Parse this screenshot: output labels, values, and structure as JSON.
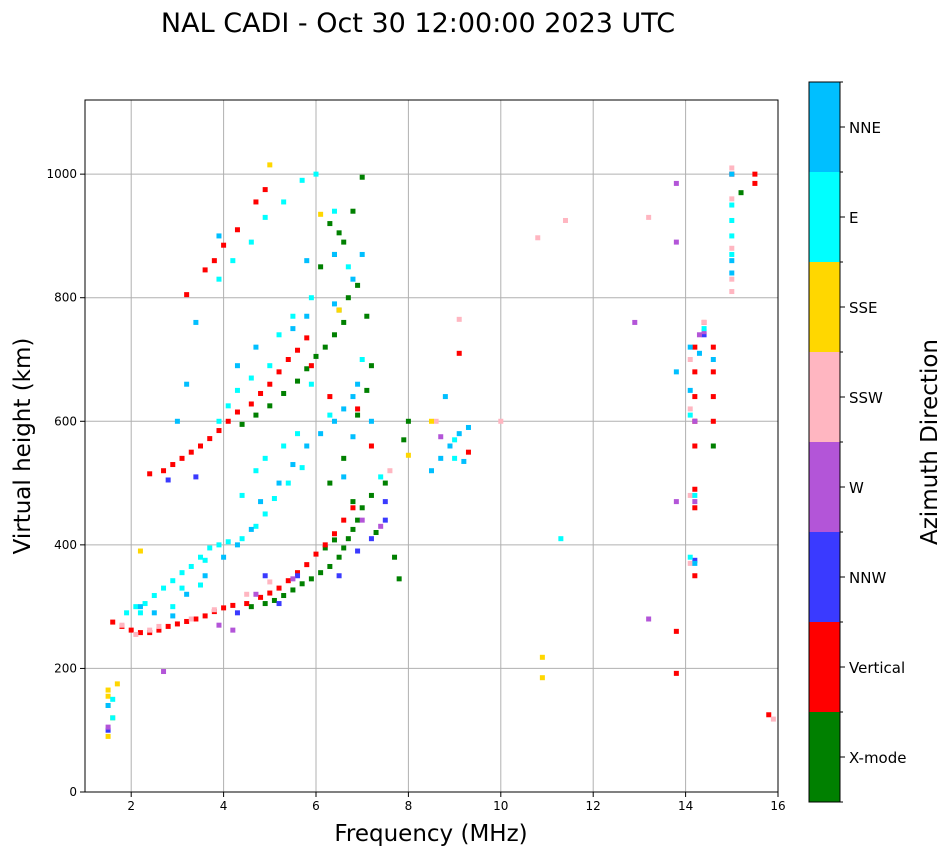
{
  "chart_data": {
    "type": "scatter",
    "title": "NAL CADI - Oct 30 12:00:00 2023 UTC",
    "xlabel": "Frequency (MHz)",
    "ylabel": "Virtual height (km)",
    "xlim": [
      1,
      16
    ],
    "ylim": [
      0,
      1120
    ],
    "xticks": [
      2,
      4,
      6,
      8,
      10,
      12,
      14,
      16
    ],
    "yticks": [
      0,
      200,
      400,
      600,
      800,
      1000
    ],
    "grid": true,
    "colorbar": {
      "label": "Azimuth Direction",
      "categories": [
        "X-mode",
        "Vertical",
        "NNW",
        "W",
        "SSW",
        "SSE",
        "E",
        "NNE"
      ],
      "colors": [
        "#008000",
        "#ff0000",
        "#3a3aff",
        "#b355d8",
        "#ffb6c1",
        "#ffd700",
        "#00ffff",
        "#00bfff"
      ]
    },
    "series": [
      {
        "name": "X-mode",
        "points": [
          [
            4.6,
            300
          ],
          [
            4.9,
            305
          ],
          [
            5.1,
            310
          ],
          [
            5.3,
            318
          ],
          [
            5.5,
            327
          ],
          [
            5.7,
            337
          ],
          [
            5.9,
            345
          ],
          [
            6.1,
            355
          ],
          [
            6.3,
            365
          ],
          [
            6.5,
            380
          ],
          [
            6.6,
            395
          ],
          [
            6.7,
            410
          ],
          [
            6.8,
            425
          ],
          [
            6.9,
            440
          ],
          [
            7.0,
            460
          ],
          [
            7.2,
            480
          ],
          [
            7.5,
            500
          ],
          [
            6.2,
            395
          ],
          [
            6.4,
            408
          ],
          [
            4.4,
            595
          ],
          [
            4.7,
            610
          ],
          [
            5.0,
            625
          ],
          [
            5.3,
            645
          ],
          [
            5.6,
            665
          ],
          [
            5.8,
            685
          ],
          [
            6.0,
            705
          ],
          [
            6.2,
            720
          ],
          [
            6.4,
            740
          ],
          [
            6.6,
            760
          ],
          [
            6.5,
            780
          ],
          [
            6.7,
            800
          ],
          [
            6.9,
            820
          ],
          [
            6.1,
            850
          ],
          [
            6.4,
            870
          ],
          [
            6.6,
            890
          ],
          [
            6.5,
            905
          ],
          [
            6.3,
            920
          ],
          [
            6.8,
            940
          ],
          [
            7.0,
            995
          ],
          [
            7.1,
            770
          ],
          [
            7.2,
            690
          ],
          [
            7.1,
            650
          ],
          [
            6.9,
            610
          ],
          [
            6.6,
            540
          ],
          [
            6.3,
            500
          ],
          [
            6.8,
            470
          ],
          [
            7.3,
            420
          ],
          [
            7.7,
            380
          ],
          [
            7.8,
            345
          ],
          [
            8.0,
            600
          ],
          [
            7.9,
            570
          ],
          [
            15.2,
            970
          ],
          [
            14.6,
            560
          ]
        ]
      },
      {
        "name": "Vertical",
        "points": [
          [
            1.6,
            275
          ],
          [
            1.8,
            268
          ],
          [
            2.0,
            262
          ],
          [
            2.2,
            258
          ],
          [
            2.4,
            258
          ],
          [
            2.6,
            262
          ],
          [
            2.8,
            268
          ],
          [
            3.0,
            272
          ],
          [
            3.2,
            276
          ],
          [
            3.4,
            280
          ],
          [
            3.6,
            285
          ],
          [
            3.8,
            292
          ],
          [
            4.0,
            298
          ],
          [
            4.2,
            302
          ],
          [
            4.5,
            305
          ],
          [
            4.8,
            315
          ],
          [
            5.0,
            322
          ],
          [
            5.2,
            330
          ],
          [
            5.4,
            342
          ],
          [
            5.6,
            355
          ],
          [
            5.8,
            368
          ],
          [
            6.0,
            385
          ],
          [
            6.2,
            400
          ],
          [
            6.4,
            418
          ],
          [
            6.6,
            440
          ],
          [
            6.8,
            460
          ],
          [
            2.4,
            515
          ],
          [
            2.7,
            520
          ],
          [
            2.9,
            530
          ],
          [
            3.1,
            540
          ],
          [
            3.3,
            550
          ],
          [
            3.5,
            560
          ],
          [
            3.7,
            572
          ],
          [
            3.9,
            585
          ],
          [
            4.1,
            600
          ],
          [
            4.3,
            615
          ],
          [
            4.6,
            628
          ],
          [
            4.8,
            645
          ],
          [
            5.0,
            660
          ],
          [
            5.2,
            680
          ],
          [
            5.4,
            700
          ],
          [
            5.6,
            715
          ],
          [
            5.8,
            735
          ],
          [
            3.6,
            845
          ],
          [
            3.8,
            860
          ],
          [
            4.0,
            885
          ],
          [
            4.3,
            910
          ],
          [
            4.7,
            955
          ],
          [
            4.9,
            975
          ],
          [
            3.2,
            805
          ],
          [
            9.1,
            710
          ],
          [
            9.3,
            550
          ],
          [
            13.8,
            260
          ],
          [
            13.8,
            192
          ],
          [
            14.2,
            560
          ],
          [
            14.2,
            600
          ],
          [
            14.2,
            640
          ],
          [
            14.2,
            680
          ],
          [
            14.2,
            720
          ],
          [
            14.2,
            490
          ],
          [
            14.2,
            460
          ],
          [
            14.2,
            350
          ],
          [
            14.6,
            600
          ],
          [
            14.6,
            640
          ],
          [
            14.6,
            680
          ],
          [
            14.6,
            720
          ],
          [
            14.4,
            760
          ],
          [
            15.0,
            1000
          ],
          [
            15.5,
            1000
          ],
          [
            15.5,
            985
          ],
          [
            15.8,
            125
          ],
          [
            6.9,
            620
          ],
          [
            6.3,
            640
          ],
          [
            5.9,
            690
          ],
          [
            7.2,
            560
          ]
        ]
      },
      {
        "name": "NNW",
        "points": [
          [
            1.5,
            100
          ],
          [
            4.3,
            290
          ],
          [
            5.2,
            305
          ],
          [
            5.6,
            350
          ],
          [
            6.5,
            350
          ],
          [
            6.9,
            390
          ],
          [
            7.2,
            410
          ],
          [
            7.5,
            440
          ],
          [
            7.5,
            470
          ],
          [
            2.8,
            505
          ],
          [
            3.4,
            510
          ],
          [
            4.9,
            350
          ],
          [
            14.4,
            740
          ],
          [
            14.2,
            375
          ]
        ]
      },
      {
        "name": "W",
        "points": [
          [
            1.5,
            105
          ],
          [
            2.7,
            195
          ],
          [
            3.9,
            270
          ],
          [
            4.2,
            262
          ],
          [
            4.7,
            320
          ],
          [
            5.5,
            345
          ],
          [
            7.4,
            430
          ],
          [
            7.0,
            440
          ],
          [
            12.9,
            760
          ],
          [
            13.2,
            280
          ],
          [
            13.8,
            985
          ],
          [
            13.8,
            890
          ],
          [
            13.8,
            470
          ],
          [
            14.3,
            740
          ],
          [
            14.2,
            600
          ],
          [
            14.2,
            470
          ],
          [
            8.7,
            575
          ],
          [
            14.4,
            745
          ]
        ]
      },
      {
        "name": "SSW",
        "points": [
          [
            1.8,
            270
          ],
          [
            2.1,
            255
          ],
          [
            2.4,
            262
          ],
          [
            2.6,
            268
          ],
          [
            3.3,
            280
          ],
          [
            3.8,
            295
          ],
          [
            4.5,
            320
          ],
          [
            5.0,
            340
          ],
          [
            9.1,
            765
          ],
          [
            10.0,
            600
          ],
          [
            10.8,
            897
          ],
          [
            11.4,
            925
          ],
          [
            13.2,
            930
          ],
          [
            14.1,
            700
          ],
          [
            14.1,
            620
          ],
          [
            14.1,
            480
          ],
          [
            14.1,
            370
          ],
          [
            14.4,
            760
          ],
          [
            15.0,
            1010
          ],
          [
            15.0,
            960
          ],
          [
            15.0,
            880
          ],
          [
            15.0,
            830
          ],
          [
            15.0,
            810
          ],
          [
            15.9,
            118
          ],
          [
            8.6,
            600
          ],
          [
            7.6,
            520
          ]
        ]
      },
      {
        "name": "SSE",
        "points": [
          [
            1.5,
            140
          ],
          [
            1.5,
            155
          ],
          [
            1.5,
            165
          ],
          [
            1.5,
            90
          ],
          [
            1.6,
            120
          ],
          [
            2.2,
            390
          ],
          [
            5.0,
            1015
          ],
          [
            6.1,
            935
          ],
          [
            6.5,
            780
          ],
          [
            8.5,
            600
          ],
          [
            10.9,
            218
          ],
          [
            10.9,
            185
          ],
          [
            8.0,
            545
          ],
          [
            1.7,
            175
          ]
        ]
      },
      {
        "name": "E",
        "points": [
          [
            1.6,
            120
          ],
          [
            1.6,
            150
          ],
          [
            1.9,
            290
          ],
          [
            2.1,
            300
          ],
          [
            2.3,
            305
          ],
          [
            2.5,
            318
          ],
          [
            2.7,
            330
          ],
          [
            2.9,
            342
          ],
          [
            3.1,
            355
          ],
          [
            3.3,
            365
          ],
          [
            3.5,
            380
          ],
          [
            3.7,
            395
          ],
          [
            3.9,
            400
          ],
          [
            4.1,
            405
          ],
          [
            4.4,
            410
          ],
          [
            4.7,
            430
          ],
          [
            4.9,
            450
          ],
          [
            5.1,
            475
          ],
          [
            5.4,
            500
          ],
          [
            5.7,
            525
          ],
          [
            4.4,
            480
          ],
          [
            4.7,
            520
          ],
          [
            4.9,
            540
          ],
          [
            5.3,
            560
          ],
          [
            5.6,
            580
          ],
          [
            3.9,
            600
          ],
          [
            4.1,
            625
          ],
          [
            4.3,
            650
          ],
          [
            4.6,
            670
          ],
          [
            5.0,
            690
          ],
          [
            5.2,
            740
          ],
          [
            5.5,
            770
          ],
          [
            5.9,
            800
          ],
          [
            3.9,
            830
          ],
          [
            4.2,
            860
          ],
          [
            4.6,
            890
          ],
          [
            4.9,
            930
          ],
          [
            5.3,
            955
          ],
          [
            5.7,
            990
          ],
          [
            6.0,
            1000
          ],
          [
            6.4,
            940
          ],
          [
            6.7,
            850
          ],
          [
            7.0,
            700
          ],
          [
            3.5,
            335
          ],
          [
            2.9,
            300
          ],
          [
            3.1,
            330
          ],
          [
            3.6,
            375
          ],
          [
            2.2,
            290
          ],
          [
            5.9,
            660
          ],
          [
            6.3,
            610
          ],
          [
            7.4,
            510
          ],
          [
            15.0,
            950
          ],
          [
            15.0,
            925
          ],
          [
            15.0,
            900
          ],
          [
            15.0,
            870
          ],
          [
            14.4,
            750
          ],
          [
            14.1,
            610
          ],
          [
            14.1,
            380
          ],
          [
            14.2,
            480
          ],
          [
            11.3,
            410
          ],
          [
            9.0,
            570
          ],
          [
            9.0,
            540
          ]
        ]
      },
      {
        "name": "NNE",
        "points": [
          [
            1.5,
            140
          ],
          [
            2.2,
            300
          ],
          [
            2.5,
            290
          ],
          [
            2.9,
            285
          ],
          [
            3.2,
            320
          ],
          [
            3.6,
            350
          ],
          [
            4.0,
            380
          ],
          [
            4.3,
            400
          ],
          [
            4.6,
            425
          ],
          [
            4.8,
            470
          ],
          [
            5.2,
            500
          ],
          [
            5.5,
            530
          ],
          [
            5.8,
            560
          ],
          [
            6.1,
            580
          ],
          [
            6.4,
            600
          ],
          [
            6.6,
            620
          ],
          [
            6.8,
            640
          ],
          [
            6.9,
            660
          ],
          [
            4.3,
            690
          ],
          [
            4.7,
            720
          ],
          [
            5.5,
            750
          ],
          [
            5.8,
            770
          ],
          [
            6.4,
            790
          ],
          [
            6.8,
            830
          ],
          [
            7.0,
            870
          ],
          [
            6.4,
            870
          ],
          [
            5.8,
            860
          ],
          [
            3.9,
            900
          ],
          [
            3.4,
            760
          ],
          [
            3.2,
            660
          ],
          [
            3.0,
            600
          ],
          [
            8.5,
            520
          ],
          [
            8.7,
            540
          ],
          [
            8.9,
            560
          ],
          [
            9.1,
            580
          ],
          [
            9.3,
            590
          ],
          [
            9.2,
            535
          ],
          [
            8.8,
            640
          ],
          [
            13.8,
            680
          ],
          [
            14.1,
            720
          ],
          [
            14.1,
            650
          ],
          [
            14.2,
            370
          ],
          [
            15.0,
            1000
          ],
          [
            15.0,
            860
          ],
          [
            15.0,
            840
          ],
          [
            14.6,
            700
          ],
          [
            14.3,
            710
          ],
          [
            7.2,
            600
          ],
          [
            6.8,
            575
          ],
          [
            6.6,
            510
          ]
        ]
      }
    ]
  }
}
